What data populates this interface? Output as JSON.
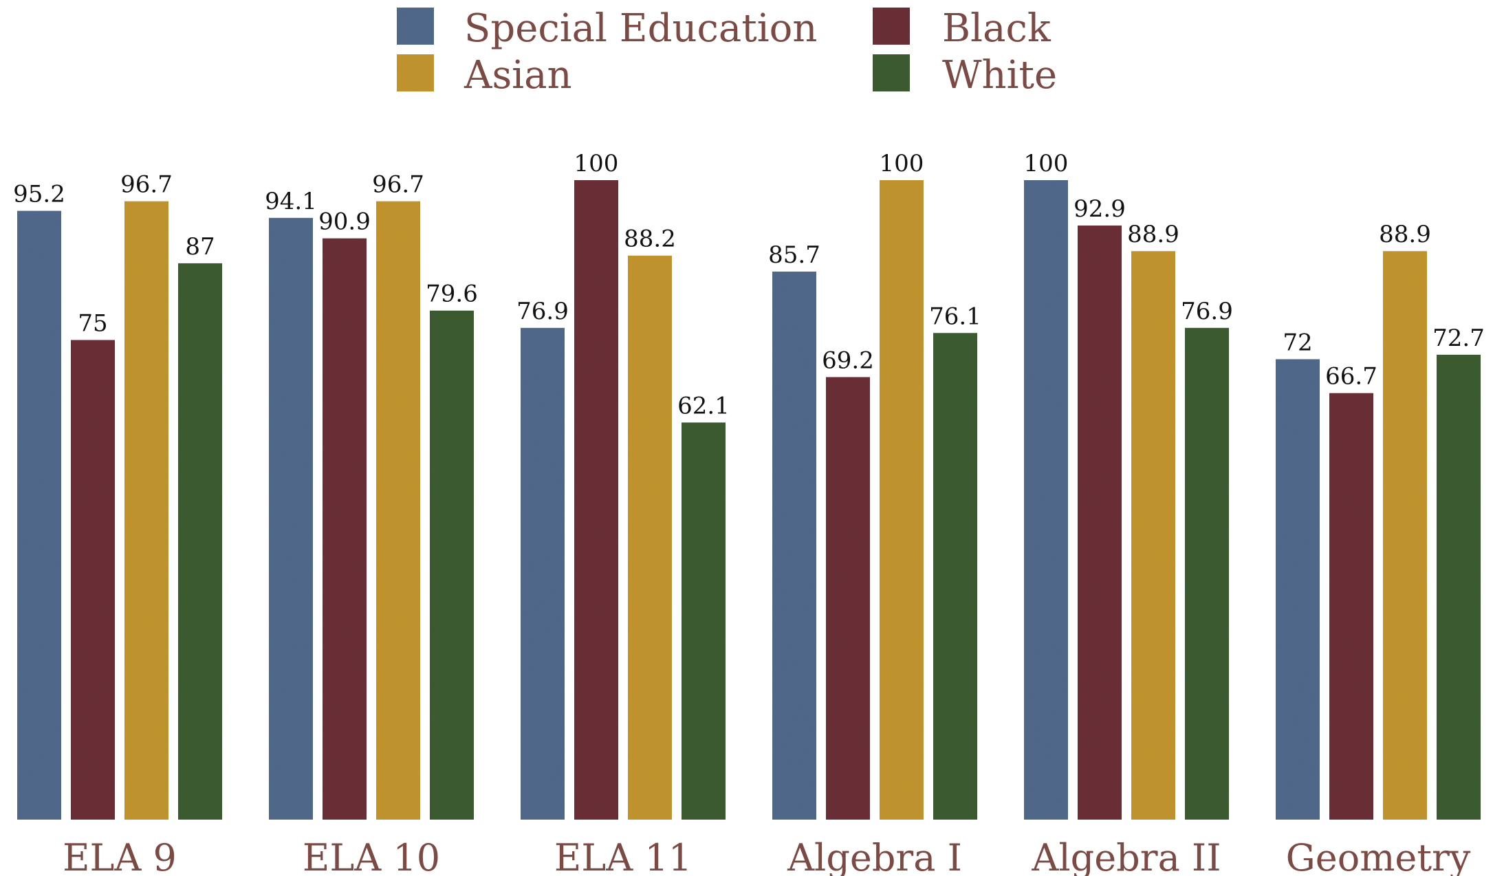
{
  "chart_data": {
    "type": "bar",
    "categories": [
      "ELA 9",
      "ELA 10",
      "ELA 11",
      "Algebra I",
      "Algebra II",
      "Geometry"
    ],
    "series": [
      {
        "name": "Special Education",
        "color": "#51698c",
        "values": [
          95.2,
          94.1,
          76.9,
          85.7,
          100,
          72
        ]
      },
      {
        "name": "Black",
        "color": "#6b3037",
        "values": [
          75,
          90.9,
          100,
          69.2,
          92.9,
          66.7
        ]
      },
      {
        "name": "Asian",
        "color": "#c3952e",
        "values": [
          96.7,
          96.7,
          88.2,
          100,
          88.9,
          88.9
        ]
      },
      {
        "name": "White",
        "color": "#3c5c31",
        "values": [
          87,
          79.6,
          62.1,
          76.1,
          76.9,
          72.7
        ]
      }
    ],
    "value_labels": [
      [
        "95.2",
        "94.1",
        "76.9",
        "85.7",
        "100",
        "72"
      ],
      [
        "75",
        "90.9",
        "100",
        "69.2",
        "92.9",
        "66.7"
      ],
      [
        "96.7",
        "96.7",
        "88.2",
        "100",
        "88.9",
        "88.9"
      ],
      [
        "87",
        "79.6",
        "62.1",
        "76.1",
        "76.9",
        "72.7"
      ]
    ],
    "ylim": [
      0,
      100
    ],
    "grid": false,
    "legend_position": "top-center",
    "title": "",
    "xlabel": "",
    "ylabel": ""
  }
}
